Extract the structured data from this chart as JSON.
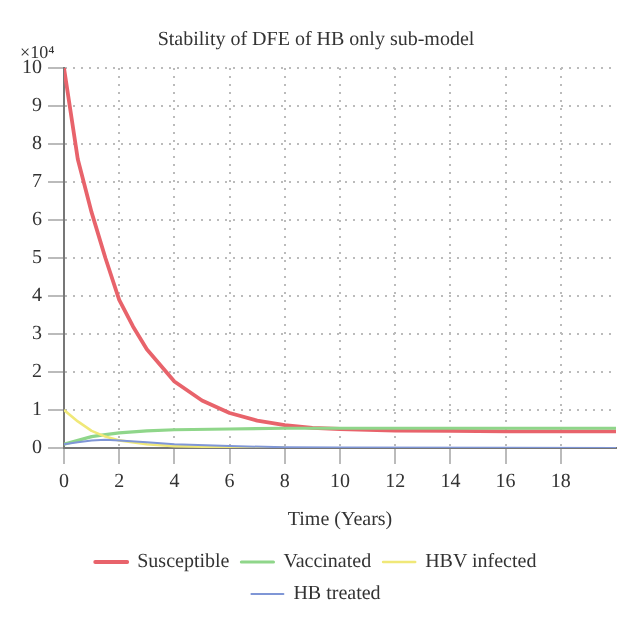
{
  "chart_data": {
    "type": "line",
    "title": "Stability of DFE of HB only sub-model",
    "xlabel": "Time (Years)",
    "annotations": [
      "×10⁴"
    ],
    "xlim": [
      0,
      20
    ],
    "xticks": [
      0,
      2,
      4,
      6,
      8,
      10,
      12,
      14,
      16,
      18
    ],
    "ylim": [
      0,
      10
    ],
    "yticks": [
      0,
      1,
      2,
      3,
      4,
      5,
      6,
      7,
      8,
      9,
      10
    ],
    "grid": true,
    "legend": "bottom",
    "marker": "none",
    "line_style": "solid",
    "series": [
      {
        "name": "Susceptible",
        "color": "#e8636b",
        "x": [
          0,
          0.5,
          1,
          1.5,
          2,
          2.5,
          3,
          4,
          5,
          6,
          7,
          8,
          9,
          10,
          12,
          14,
          16,
          18,
          20
        ],
        "values": [
          10,
          7.6,
          6.2,
          5.0,
          3.9,
          3.2,
          2.6,
          1.75,
          1.25,
          0.92,
          0.72,
          0.6,
          0.53,
          0.5,
          0.46,
          0.45,
          0.44,
          0.44,
          0.44
        ]
      },
      {
        "name": "Vaccinated",
        "color": "#8fd68a",
        "x": [
          0,
          1,
          1.5,
          2,
          3,
          4,
          6,
          8,
          10,
          20
        ],
        "values": [
          0.1,
          0.3,
          0.35,
          0.4,
          0.45,
          0.48,
          0.5,
          0.52,
          0.52,
          0.52
        ]
      },
      {
        "name": "HBV infected",
        "color": "#f0e878",
        "x": [
          0,
          0.5,
          1,
          1.5,
          2,
          3,
          4,
          6,
          8
        ],
        "values": [
          1.0,
          0.7,
          0.45,
          0.3,
          0.2,
          0.1,
          0.05,
          0.02,
          0.01
        ]
      },
      {
        "name": "HB treated",
        "color": "#7f96d6",
        "x": [
          0,
          0.5,
          1,
          1.5,
          2,
          3,
          4,
          6,
          8,
          10,
          20
        ],
        "values": [
          0.1,
          0.15,
          0.2,
          0.22,
          0.2,
          0.15,
          0.1,
          0.05,
          0.02,
          0.01,
          0
        ]
      }
    ]
  }
}
